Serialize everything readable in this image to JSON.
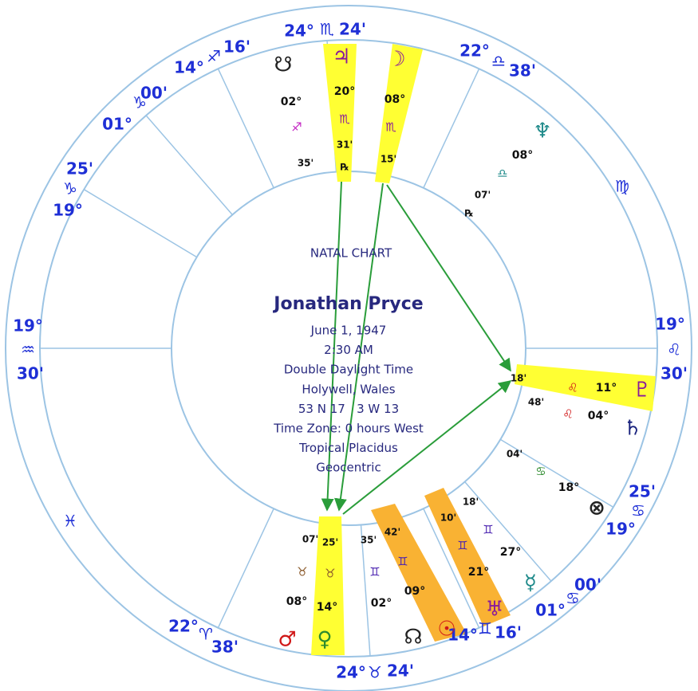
{
  "title": "NATAL CHART",
  "name": "Jonathan Pryce",
  "details": [
    "June 1, 1947",
    "2:30 AM",
    "Double Daylight Time",
    "Holywell, Wales",
    "53 N 17   3 W 13",
    "Time Zone: 0 hours West",
    "Tropical Placidus",
    "Geocentric"
  ],
  "cusps": [
    {
      "degree": "24°",
      "sign": "♏",
      "minute": "24'"
    },
    {
      "degree": "22°",
      "sign": "♎",
      "minute": "38'"
    },
    {
      "sign": "♍"
    },
    {
      "degree": "19°",
      "sign": "♌",
      "minute": "30'"
    },
    {
      "degree": "19°",
      "sign": "♋",
      "minute": "25'"
    },
    {
      "degree": "01°",
      "sign": "♋",
      "minute": "00'"
    },
    {
      "degree": "14°",
      "sign": "♊",
      "minute": "16'"
    },
    {
      "degree": "24°",
      "sign": "♉",
      "minute": "24'"
    },
    {
      "degree": "22°",
      "sign": "♈",
      "minute": "38'"
    },
    {
      "sign": "♓"
    },
    {
      "degree": "19°",
      "sign": "♒",
      "minute": "30'"
    },
    {
      "degree": "19°",
      "sign": "♑",
      "minute": "25'"
    },
    {
      "degree": "01°",
      "sign": "♑",
      "minute": "00'"
    },
    {
      "degree": "14°",
      "sign": "♐",
      "minute": "16'"
    }
  ],
  "planets": [
    {
      "glyph": "♃",
      "degree": "20°",
      "sign": "♏",
      "minute": "31'",
      "retrograde": "℞"
    },
    {
      "glyph": "☽",
      "degree": "08°",
      "sign": "♏",
      "minute": "15'"
    },
    {
      "glyph": "☋",
      "degree": "02°",
      "sign": "♐",
      "minute": "35'"
    },
    {
      "glyph": "♆",
      "degree": "08°",
      "sign": "♎",
      "minute": "07'",
      "retrograde": "℞"
    },
    {
      "glyph": "♇",
      "degree": "11°",
      "sign": "♌",
      "minute": "18'"
    },
    {
      "glyph": "♄",
      "degree": "04°",
      "sign": "♌",
      "minute": "48'"
    },
    {
      "glyph": "⊗",
      "degree": "18°",
      "sign": "♋",
      "minute": "04'"
    },
    {
      "glyph": "☿",
      "degree": "27°",
      "sign": "♊",
      "minute": "18'"
    },
    {
      "glyph": "♅",
      "degree": "21°",
      "sign": "♊",
      "minute": "10'"
    },
    {
      "glyph": "☉",
      "degree": "09°",
      "sign": "♊",
      "minute": "42'"
    },
    {
      "glyph": "☊",
      "degree": "02°",
      "sign": "♊",
      "minute": "35'"
    },
    {
      "glyph": "♀",
      "degree": "14°",
      "sign": "♉",
      "minute": "25'"
    },
    {
      "glyph": "♂",
      "degree": "08°",
      "sign": "♉",
      "minute": "07'"
    }
  ]
}
